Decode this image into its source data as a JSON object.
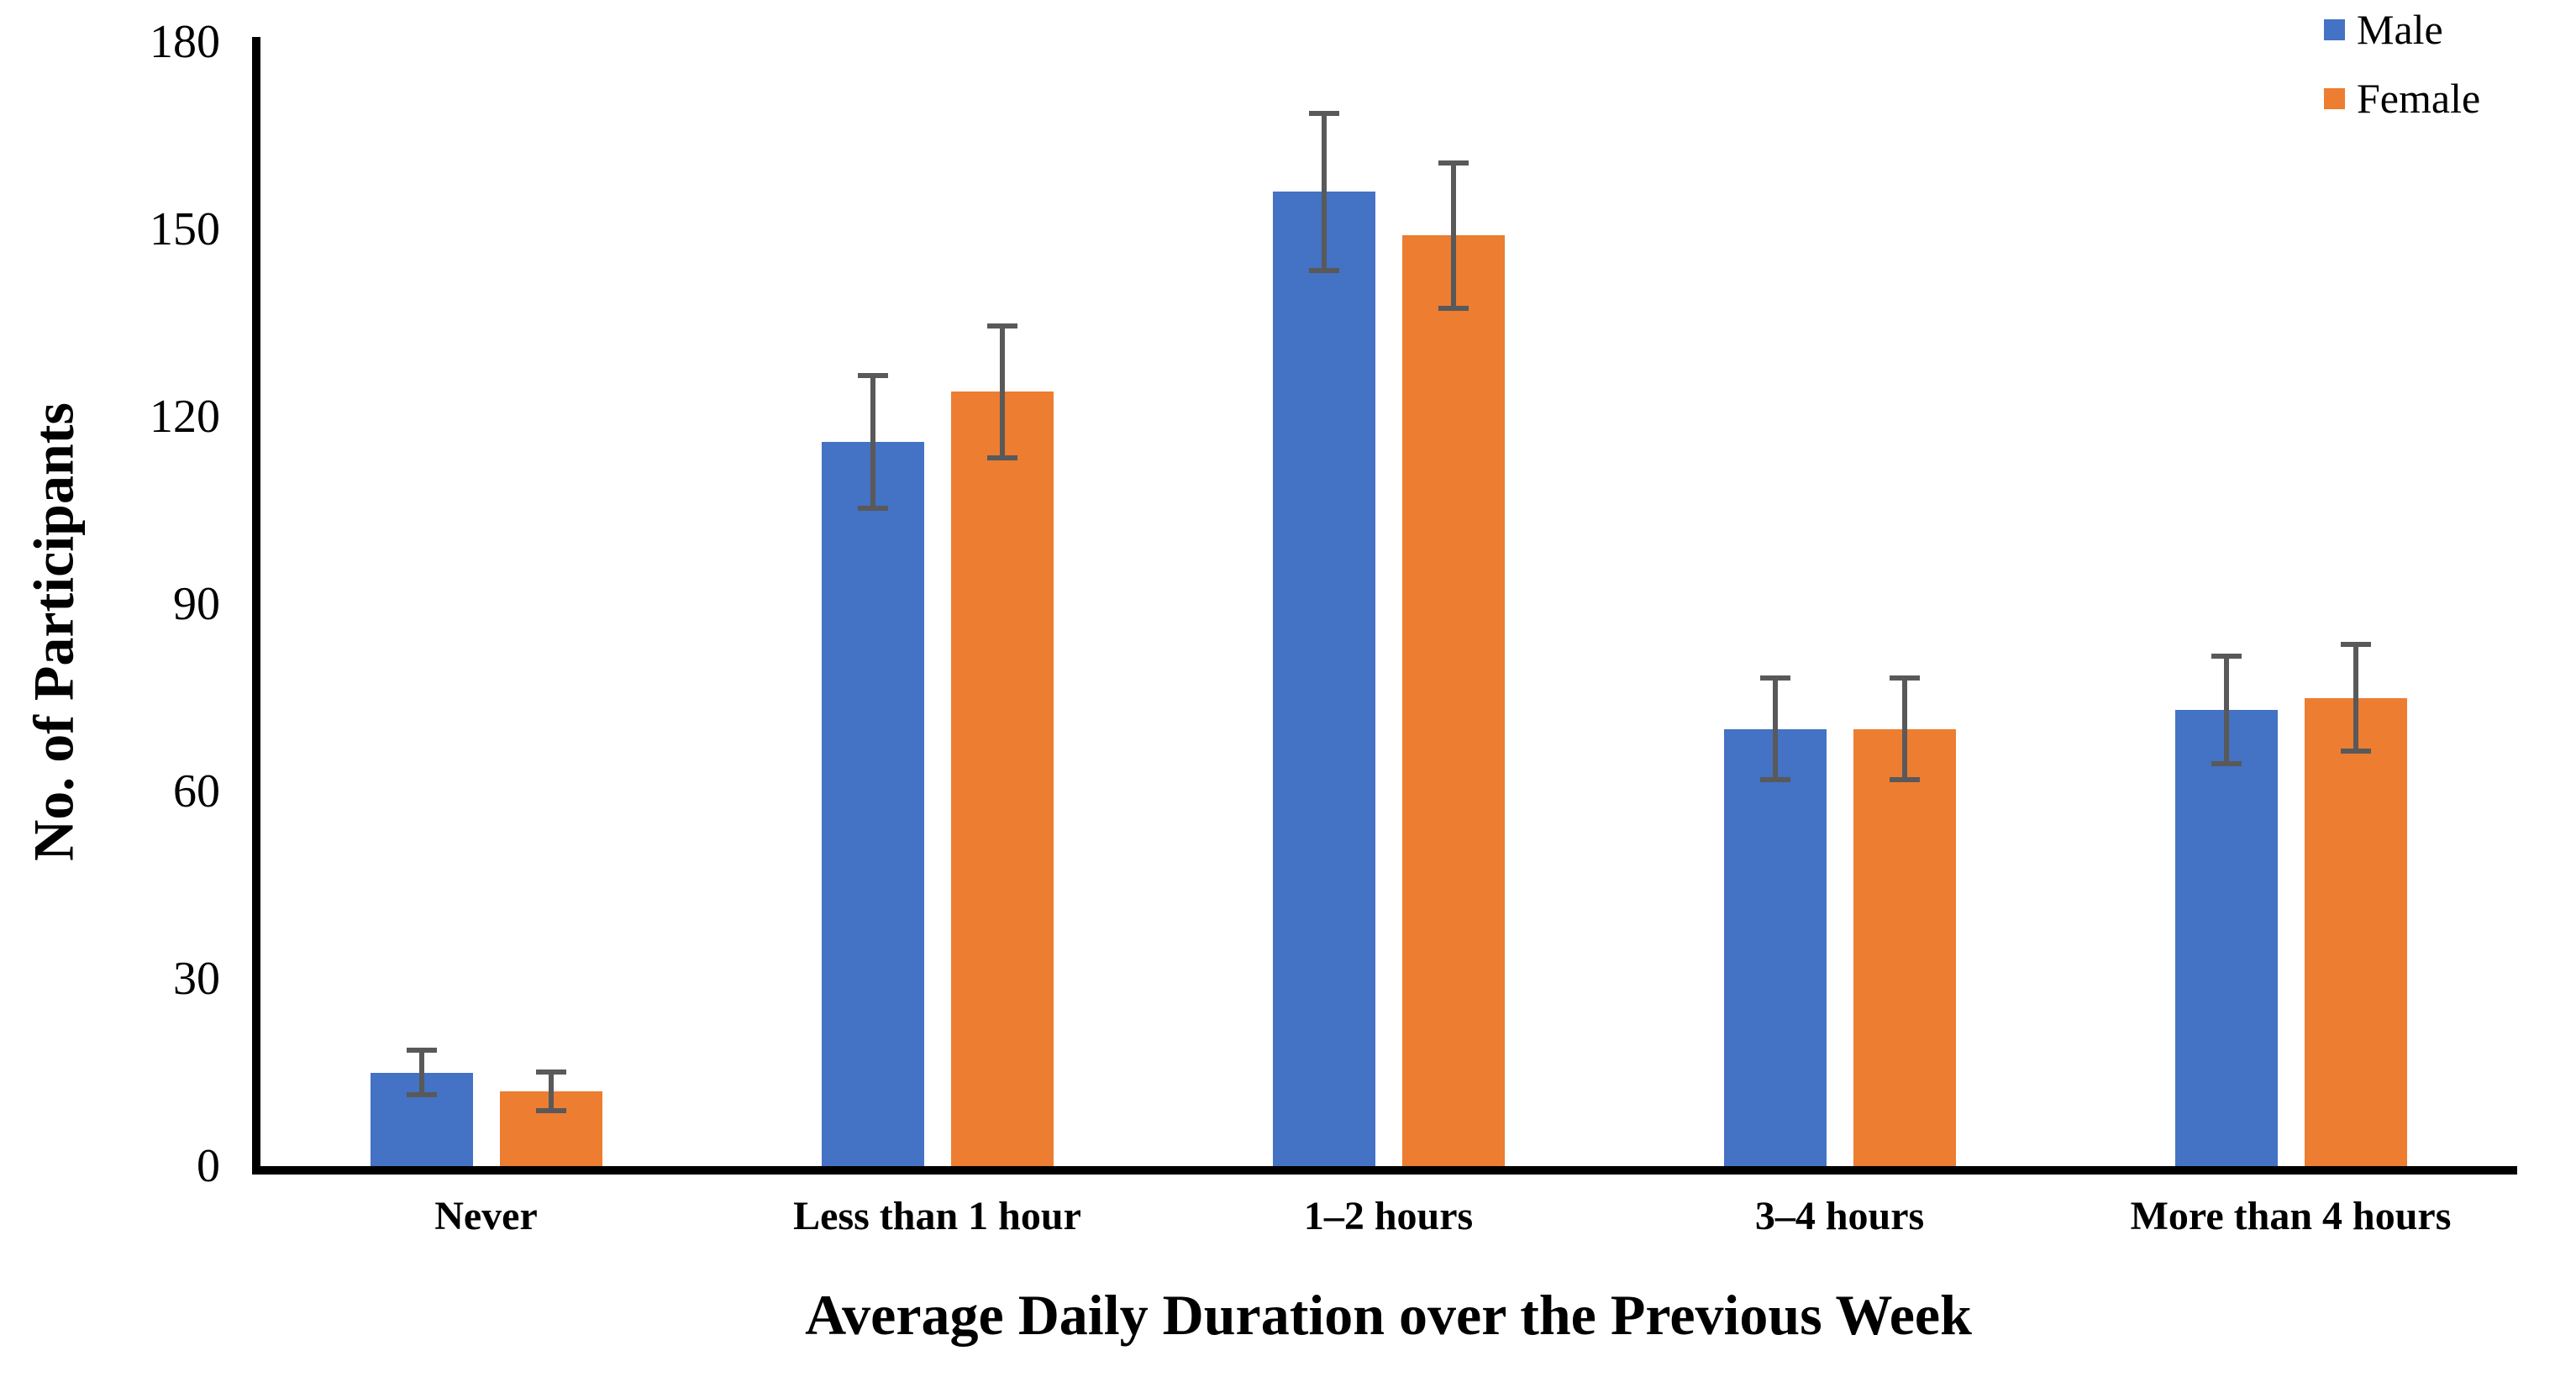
{
  "chart_data": {
    "type": "bar",
    "title": "",
    "categories": [
      "Never",
      "Less than 1 hour",
      "1–2 hours",
      "3–4 hours",
      "More than 4 hours"
    ],
    "series": [
      {
        "name": "Male",
        "color": "#4472C4",
        "values": [
          15,
          116,
          156,
          70,
          73
        ],
        "errors": [
          4,
          11,
          13,
          8.5,
          9
        ]
      },
      {
        "name": "Female",
        "color": "#ED7D31",
        "values": [
          12,
          124,
          149,
          70,
          75
        ],
        "errors": [
          3.5,
          11,
          12,
          8.5,
          9
        ]
      }
    ],
    "xlabel": "Average Daily Duration over the Previous Week",
    "ylabel": "No. of Participants",
    "ylim": [
      0,
      180
    ],
    "yticks": [
      0,
      30,
      60,
      90,
      120,
      150,
      180
    ],
    "grid": false,
    "legend_position": "top-right",
    "error_bar_color": "#595959",
    "axis_color": "#000000",
    "background_color": "#ffffff"
  }
}
